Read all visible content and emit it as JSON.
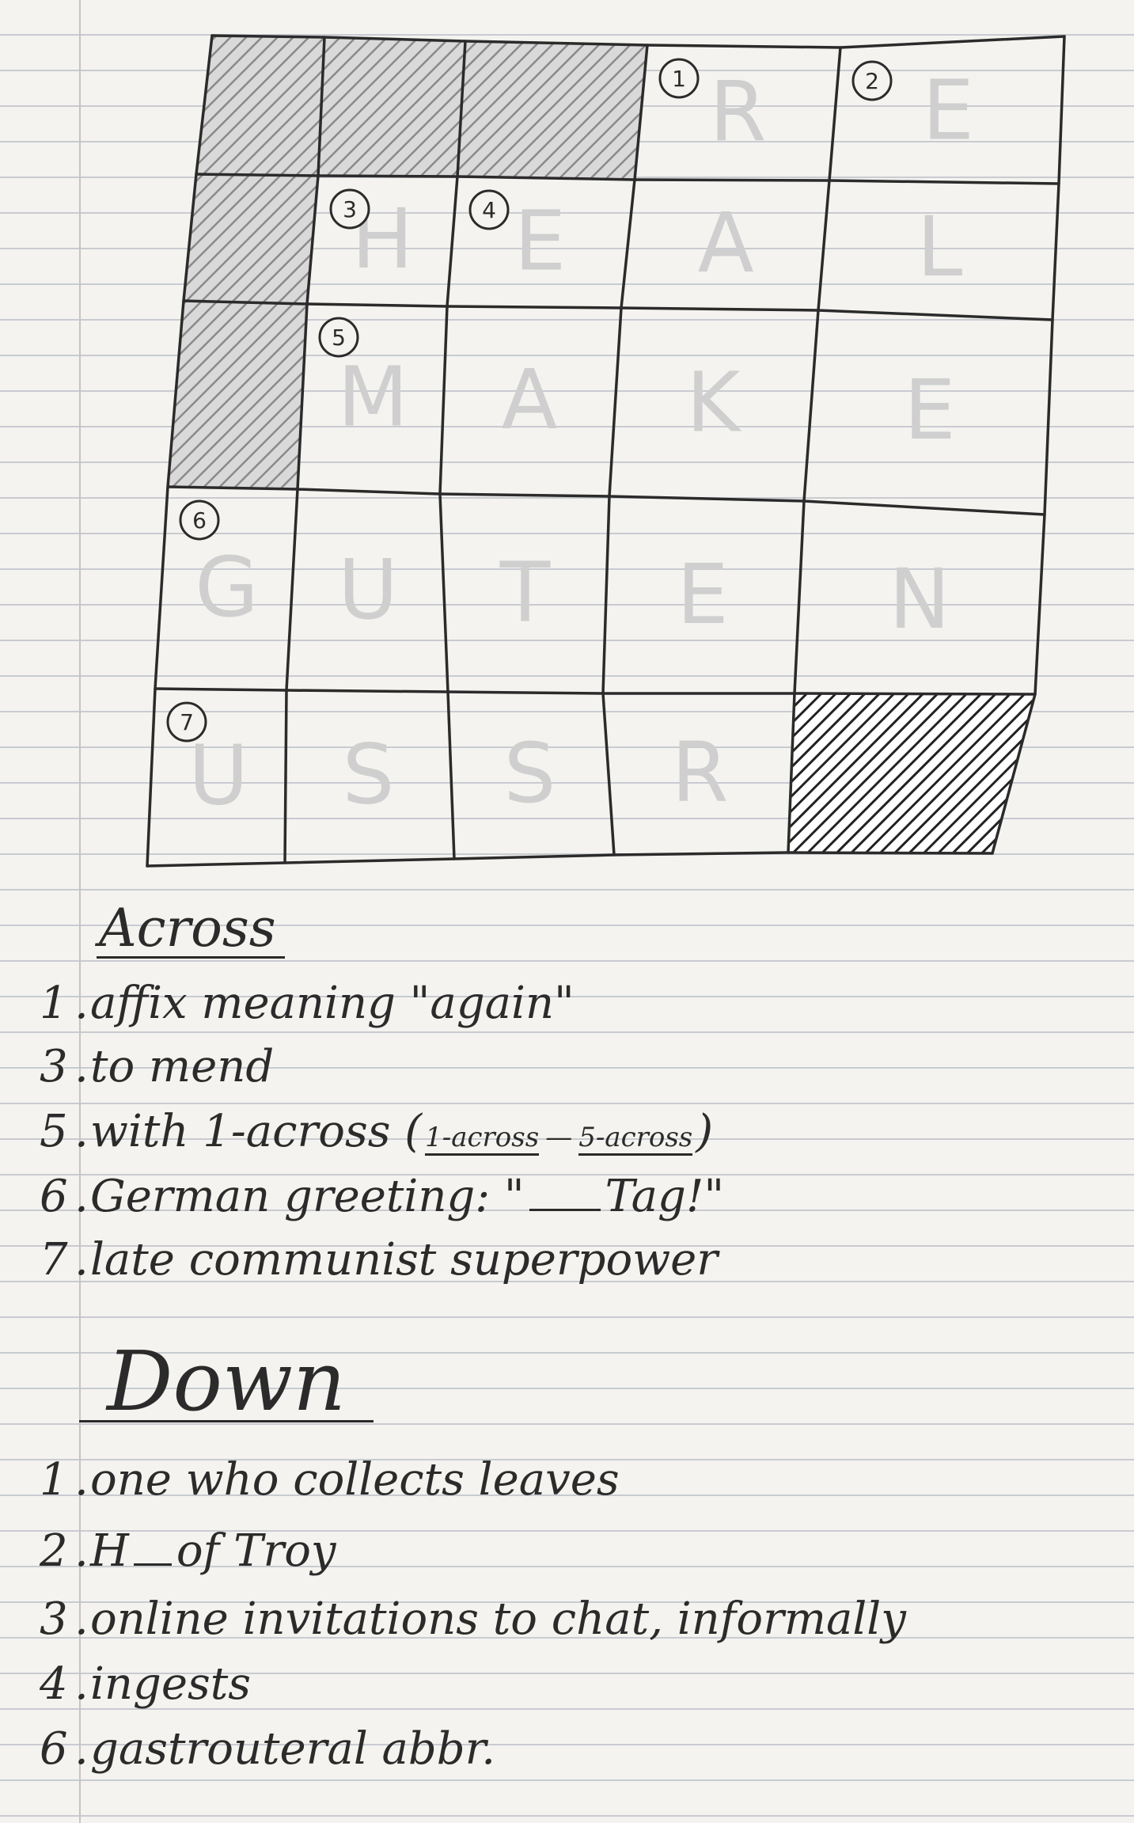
{
  "grid": {
    "rows": 5,
    "cols": 5,
    "blocked": [
      [
        0,
        0
      ],
      [
        0,
        1
      ],
      [
        0,
        2
      ],
      [
        1,
        0
      ],
      [
        2,
        0
      ],
      [
        4,
        4
      ]
    ],
    "numbers": [
      {
        "row": 0,
        "col": 3,
        "label": "1"
      },
      {
        "row": 0,
        "col": 4,
        "label": "2"
      },
      {
        "row": 1,
        "col": 1,
        "label": "3"
      },
      {
        "row": 1,
        "col": 2,
        "label": "4"
      },
      {
        "row": 2,
        "col": 1,
        "label": "5"
      },
      {
        "row": 3,
        "col": 0,
        "label": "6"
      },
      {
        "row": 4,
        "col": 0,
        "label": "7"
      }
    ],
    "faint_letters": [
      {
        "row": 0,
        "col": 3,
        "char": "R"
      },
      {
        "row": 0,
        "col": 4,
        "char": "E"
      },
      {
        "row": 1,
        "col": 1,
        "char": "H"
      },
      {
        "row": 1,
        "col": 2,
        "char": "E"
      },
      {
        "row": 1,
        "col": 3,
        "char": "A"
      },
      {
        "row": 1,
        "col": 4,
        "char": "L"
      },
      {
        "row": 2,
        "col": 1,
        "char": "M"
      },
      {
        "row": 2,
        "col": 2,
        "char": "A"
      },
      {
        "row": 2,
        "col": 3,
        "char": "K"
      },
      {
        "row": 2,
        "col": 4,
        "char": "E"
      },
      {
        "row": 3,
        "col": 0,
        "char": "G"
      },
      {
        "row": 3,
        "col": 1,
        "char": "U"
      },
      {
        "row": 3,
        "col": 2,
        "char": "T"
      },
      {
        "row": 3,
        "col": 3,
        "char": "E"
      },
      {
        "row": 3,
        "col": 4,
        "char": "N"
      },
      {
        "row": 4,
        "col": 0,
        "char": "U"
      },
      {
        "row": 4,
        "col": 1,
        "char": "S"
      },
      {
        "row": 4,
        "col": 2,
        "char": "S"
      },
      {
        "row": 4,
        "col": 3,
        "char": "R"
      }
    ],
    "ink_color": "#2b2b2b",
    "faint_color": "#cfcfcf"
  },
  "across": {
    "heading": "Across",
    "clues": [
      {
        "num": "1",
        "dot": ".",
        "text": "affix meaning \"again\""
      },
      {
        "num": "3",
        "dot": ".",
        "text": "to mend"
      },
      {
        "num": "5",
        "dot": ".",
        "text_before": "with 1-across (",
        "frac_top": "1-across",
        "dash": "—",
        "frac_bottom": "5-across",
        "text_after": ")"
      },
      {
        "num": "6",
        "dot": ".",
        "text_before": "German greeting: \"",
        "text_after": "Tag!\""
      },
      {
        "num": "7",
        "dot": ".",
        "text": "late communist superpower"
      }
    ]
  },
  "down": {
    "heading": "Down",
    "clues": [
      {
        "num": "1",
        "dot": ".",
        "text": "one who collects leaves"
      },
      {
        "num": "2",
        "dot": ".",
        "text_before": "H",
        "text_after": "of Troy"
      },
      {
        "num": "3",
        "dot": ".",
        "text": "online invitations to chat, informally"
      },
      {
        "num": "4",
        "dot": ".",
        "text": "ingests"
      },
      {
        "num": "6",
        "dot": ".",
        "text": "gastrouteral abbr."
      }
    ]
  }
}
